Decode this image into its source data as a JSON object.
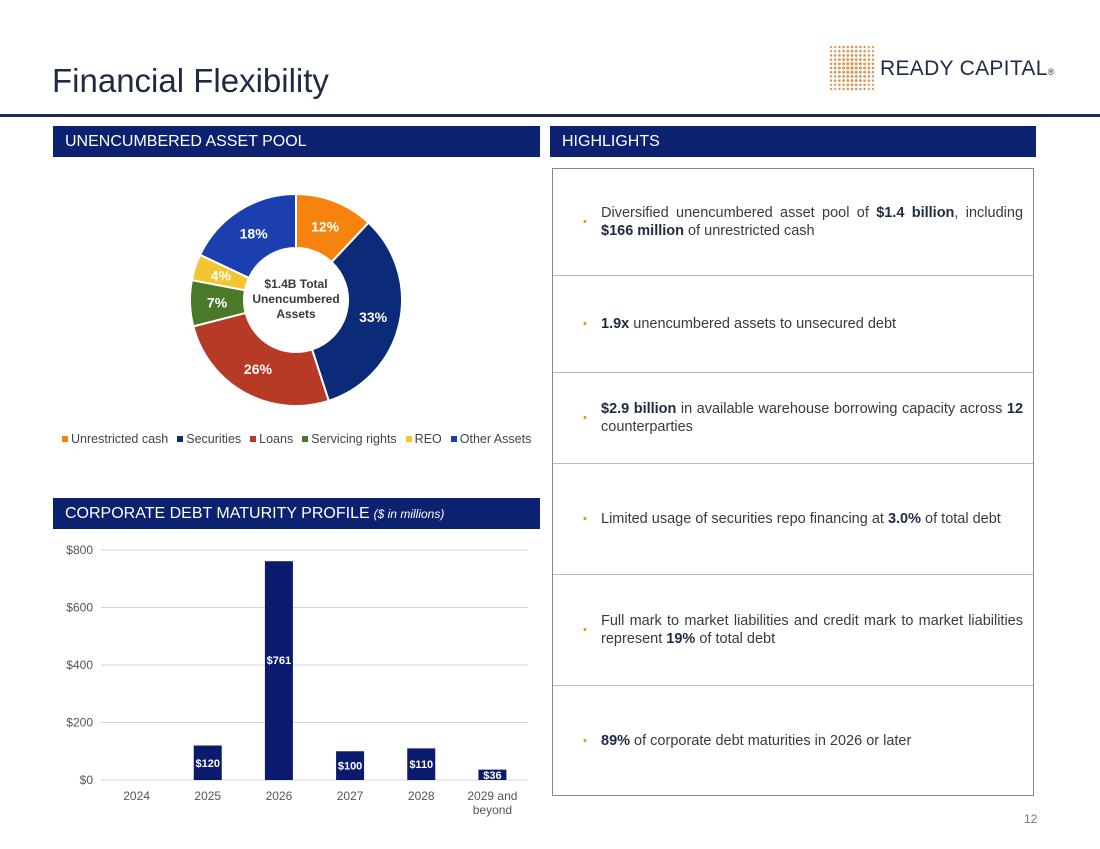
{
  "header": {
    "title": "Financial Flexibility",
    "logo_text": "READY CAPITAL",
    "logo_mark": "®"
  },
  "sections": {
    "asset_pool": "UNENCUMBERED ASSET POOL",
    "highlights": "HIGHLIGHTS",
    "debt_profile": "CORPORATE DEBT MATURITY PROFILE",
    "debt_profile_unit": "($ in millions)"
  },
  "colors": {
    "navy": "#0c2170",
    "orange": "#f08a00",
    "unrestricted_cash": "#f7830f",
    "securities": "#0b2a78",
    "loans": "#b73a26",
    "servicing_rights": "#4a7a29",
    "reo": "#f5c431",
    "other_assets": "#1c3fb0"
  },
  "chart_data": [
    {
      "type": "pie",
      "center_label": [
        "$1.4B Total",
        "Unencumbered",
        "Assets"
      ],
      "categories": [
        "Unrestricted cash",
        "Securities",
        "Loans",
        "Servicing rights",
        "REO",
        "Other Assets"
      ],
      "values": [
        12,
        33,
        26,
        7,
        4,
        18
      ],
      "labels": [
        "12%",
        "33%",
        "26%",
        "7%",
        "4%",
        "18%"
      ],
      "colors": [
        "#f7830f",
        "#0b2a78",
        "#b73a26",
        "#4a7a29",
        "#f5c431",
        "#1c3fb0"
      ],
      "legend_position": "bottom"
    },
    {
      "type": "bar",
      "categories": [
        "2024",
        "2025",
        "2026",
        "2027",
        "2028",
        "2029 and beyond"
      ],
      "values": [
        0,
        120,
        761,
        100,
        110,
        36
      ],
      "labels": [
        "",
        "$120",
        "$761",
        "$100",
        "$110",
        "$36"
      ],
      "ylim": [
        0,
        800
      ],
      "yticks": [
        0,
        200,
        400,
        600,
        800
      ],
      "ytick_labels": [
        "$0",
        "$200",
        "$400",
        "$600",
        "$800"
      ],
      "grid": true,
      "bar_color": "#0c1a6e"
    }
  ],
  "highlights": [
    {
      "parts": [
        [
          "Diversified unencumbered asset pool of ",
          false
        ],
        [
          "$1.4 billion",
          true
        ],
        [
          ", including ",
          false
        ],
        [
          "$166 million",
          true
        ],
        [
          " of unrestricted cash",
          false
        ]
      ]
    },
    {
      "parts": [
        [
          "1.9x",
          true
        ],
        [
          " unencumbered assets to unsecured debt",
          false
        ]
      ]
    },
    {
      "parts": [
        [
          "$2.9 billion",
          true
        ],
        [
          " in available warehouse borrowing capacity across ",
          false
        ],
        [
          "12",
          true
        ],
        [
          " counterparties",
          false
        ]
      ]
    },
    {
      "parts": [
        [
          "Limited usage of securities repo financing at ",
          false
        ],
        [
          "3.0%",
          true
        ],
        [
          " of total debt",
          false
        ]
      ]
    },
    {
      "parts": [
        [
          "Full mark to market liabilities and credit mark to market liabilities represent ",
          false
        ],
        [
          "19%",
          true
        ],
        [
          " of total debt",
          false
        ]
      ]
    },
    {
      "parts": [
        [
          "89%",
          true
        ],
        [
          " of corporate debt maturities in 2026 or later",
          false
        ]
      ]
    }
  ],
  "page_number": "12"
}
